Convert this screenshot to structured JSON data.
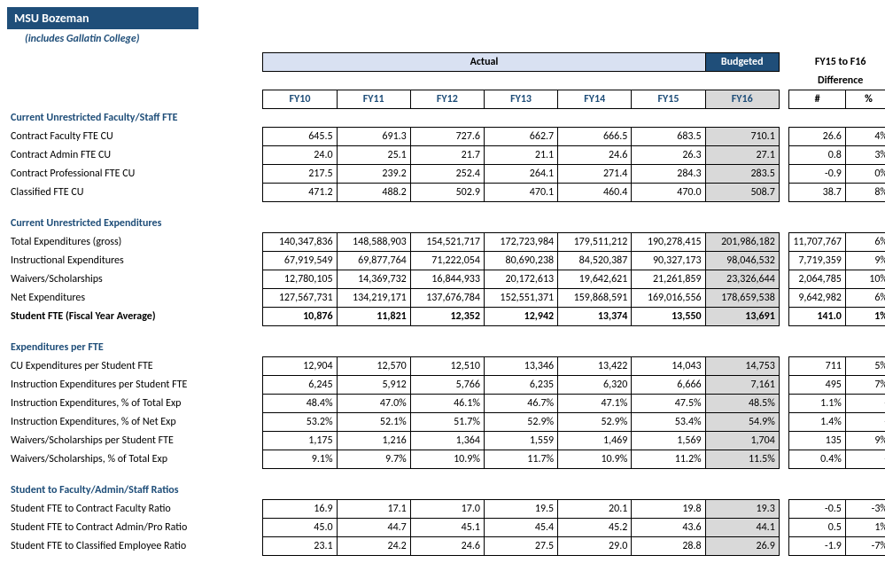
{
  "title": "MSU Bozeman",
  "subtitle": "(includes Gallatin College)",
  "header": {
    "actual_label": "Actual",
    "budgeted_label": "Budgeted",
    "diff_top": "FY15 to F16",
    "diff_label": "Difference",
    "years": [
      "FY10",
      "FY11",
      "FY12",
      "FY13",
      "FY14",
      "FY15"
    ],
    "budget_year": "FY16",
    "num_label": "#",
    "pct_label": "%"
  },
  "sections": [
    {
      "title": "Current Unrestricted Faculty/Staff FTE",
      "rows": [
        {
          "label": "Contract Faculty FTE CU",
          "fy": [
            "645.5",
            "691.3",
            "727.6",
            "662.7",
            "666.5",
            "683.5"
          ],
          "b": "710.1",
          "d": "26.6",
          "p": "4%"
        },
        {
          "label": "Contract Admin FTE CU",
          "fy": [
            "24.0",
            "25.1",
            "21.7",
            "21.1",
            "24.6",
            "26.3"
          ],
          "b": "27.1",
          "d": "0.8",
          "p": "3%"
        },
        {
          "label": "Contract Professional FTE CU",
          "fy": [
            "217.5",
            "239.2",
            "252.4",
            "264.1",
            "271.4",
            "284.3"
          ],
          "b": "283.5",
          "d": "-0.9",
          "p": "0%"
        },
        {
          "label": "Classified FTE CU",
          "fy": [
            "471.2",
            "488.2",
            "502.9",
            "470.1",
            "460.4",
            "470.0"
          ],
          "b": "508.7",
          "d": "38.7",
          "p": "8%"
        }
      ]
    },
    {
      "title": "Current Unrestricted Expenditures",
      "rows": [
        {
          "label": "Total Expenditures (gross)",
          "fy": [
            "140,347,836",
            "148,588,903",
            "154,521,717",
            "172,723,984",
            "179,511,212",
            "190,278,415"
          ],
          "b": "201,986,182",
          "d": "11,707,767",
          "p": "6%"
        },
        {
          "label": "Instructional Expenditures",
          "fy": [
            "67,919,549",
            "69,877,764",
            "71,222,054",
            "80,690,238",
            "84,520,387",
            "90,327,173"
          ],
          "b": "98,046,532",
          "d": "7,719,359",
          "p": "9%"
        },
        {
          "label": "Waivers/Scholarships",
          "fy": [
            "12,780,105",
            "14,369,732",
            "16,844,933",
            "20,172,613",
            "19,642,621",
            "21,261,859"
          ],
          "b": "23,326,644",
          "d": "2,064,785",
          "p": "10%"
        },
        {
          "label": "Net Expenditures",
          "fy": [
            "127,567,731",
            "134,219,171",
            "137,676,784",
            "152,551,371",
            "159,868,591",
            "169,016,556"
          ],
          "b": "178,659,538",
          "d": "9,642,982",
          "p": "6%"
        },
        {
          "label": "Student FTE (Fiscal Year Average)",
          "bold": true,
          "fy": [
            "10,876",
            "11,821",
            "12,352",
            "12,942",
            "13,374",
            "13,550"
          ],
          "b": "13,691",
          "d": "141.0",
          "p": "1%"
        }
      ]
    },
    {
      "title": "Expenditures per FTE",
      "rows": [
        {
          "label": "CU Expenditures per Student FTE",
          "fy": [
            "12,904",
            "12,570",
            "12,510",
            "13,346",
            "13,422",
            "14,043"
          ],
          "b": "14,753",
          "d": "711",
          "p": "5%"
        },
        {
          "label": "Instruction Expenditures per Student FTE",
          "fy": [
            "6,245",
            "5,912",
            "5,766",
            "6,235",
            "6,320",
            "6,666"
          ],
          "b": "7,161",
          "d": "495",
          "p": "7%"
        },
        {
          "label": "Instruction Expenditures, % of Total Exp",
          "fy": [
            "48.4%",
            "47.0%",
            "46.1%",
            "46.7%",
            "47.1%",
            "47.5%"
          ],
          "b": "48.5%",
          "d": "1.1%",
          "p": "-"
        },
        {
          "label": "Instruction Expenditures, % of Net Exp",
          "fy": [
            "53.2%",
            "52.1%",
            "51.7%",
            "52.9%",
            "52.9%",
            "53.4%"
          ],
          "b": "54.9%",
          "d": "1.4%",
          "p": "-"
        },
        {
          "label": "Waivers/Scholarships per Student FTE",
          "fy": [
            "1,175",
            "1,216",
            "1,364",
            "1,559",
            "1,469",
            "1,569"
          ],
          "b": "1,704",
          "d": "135",
          "p": "9%"
        },
        {
          "label": "Waivers/Scholarships, % of Total Exp",
          "fy": [
            "9.1%",
            "9.7%",
            "10.9%",
            "11.7%",
            "10.9%",
            "11.2%"
          ],
          "b": "11.5%",
          "d": "0.4%",
          "p": "-"
        }
      ]
    },
    {
      "title": "Student to Faculty/Admin/Staff Ratios",
      "rows": [
        {
          "label": "Student FTE to Contract Faculty Ratio",
          "fy": [
            "16.9",
            "17.1",
            "17.0",
            "19.5",
            "20.1",
            "19.8"
          ],
          "b": "19.3",
          "d": "-0.5",
          "p": "-3%"
        },
        {
          "label": "Student FTE to Contract Admin/Pro Ratio",
          "fy": [
            "45.0",
            "44.7",
            "45.1",
            "45.4",
            "45.2",
            "43.6"
          ],
          "b": "44.1",
          "d": "0.5",
          "p": "1%"
        },
        {
          "label": "Student FTE to Classified Employee Ratio",
          "fy": [
            "23.1",
            "24.2",
            "24.6",
            "27.5",
            "29.0",
            "28.8"
          ],
          "b": "26.9",
          "d": "-1.9",
          "p": "-7%"
        }
      ]
    }
  ]
}
